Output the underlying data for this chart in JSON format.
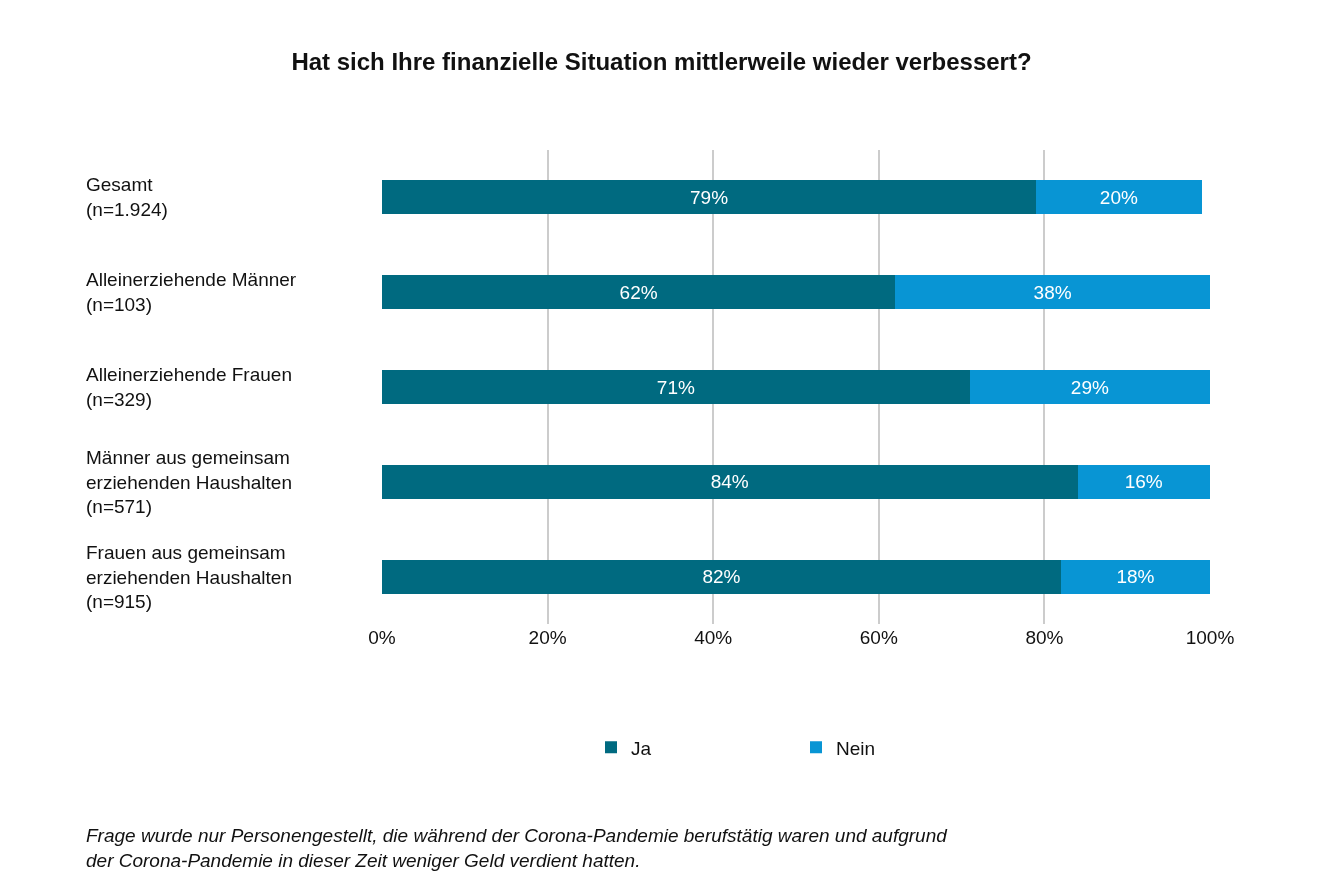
{
  "chart_data": {
    "type": "bar",
    "orientation": "horizontal",
    "stacked": true,
    "title": "Hat sich Ihre finanzielle Situation mittlerweile wieder verbessert?",
    "categories": [
      "Gesamt\n(n=1.924)",
      "Alleinerziehende Männer\n(n=103)",
      "Alleinerziehende Frauen\n(n=329)",
      "Männer aus gemeinsam\nerziehenden Haushalten\n(n=571)",
      "Frauen aus gemeinsam\nerziehenden Haushalten\n(n=915)"
    ],
    "series": [
      {
        "name": "Ja",
        "color": "#006a80",
        "values": [
          79,
          62,
          71,
          84,
          82
        ],
        "value_labels": [
          "79%",
          "62%",
          "71%",
          "84%",
          "82%"
        ]
      },
      {
        "name": "Nein",
        "color": "#0895d4",
        "values": [
          20,
          38,
          29,
          16,
          18
        ],
        "value_labels": [
          "20%",
          "38%",
          "29%",
          "16%",
          "18%"
        ]
      }
    ],
    "xlim": [
      0,
      100
    ],
    "xticks": [
      {
        "value": 0,
        "label": "0%"
      },
      {
        "value": 20,
        "label": "20%"
      },
      {
        "value": 40,
        "label": "40%"
      },
      {
        "value": 60,
        "label": "60%"
      },
      {
        "value": 80,
        "label": "80%"
      },
      {
        "value": 100,
        "label": "100%"
      }
    ],
    "grid": "x",
    "legend": "bottom",
    "annotations": [
      "Frage wurde nur Personengestellt, die während der Corona-Pandemie berufstätig waren und aufgrund\nder Corona-Pandemie in dieser Zeit weniger Geld verdient hatten."
    ]
  }
}
